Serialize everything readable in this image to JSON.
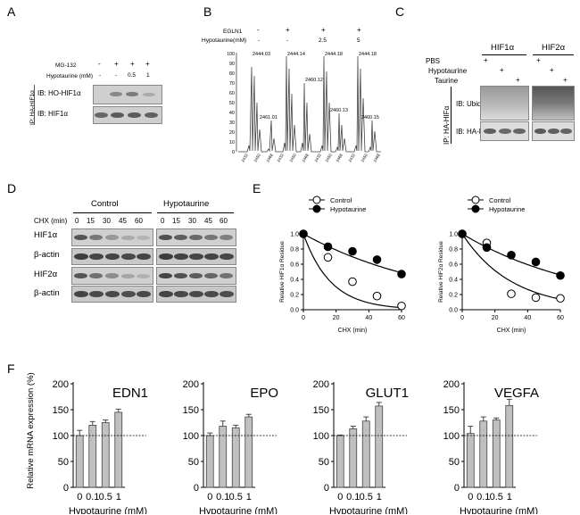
{
  "panels": {
    "a": "A",
    "b": "B",
    "c": "C",
    "d": "D",
    "e": "E",
    "f": "F"
  },
  "panel_a": {
    "mg132_label": "MG-132",
    "mg132_signs": [
      "-",
      "+",
      "+",
      "+"
    ],
    "hypotaurine_label": "Hypotaurine (mM)",
    "hypotaurine_values": [
      "-",
      "-",
      "0.5",
      "1"
    ],
    "ip_label": "IP: HA-HIF1α",
    "rows": [
      "IB: HO-HIF1α",
      "IB: HIF1α"
    ]
  },
  "panel_b": {
    "egln1_label": "EGLN1",
    "egln1_signs": [
      "-",
      "+",
      "+",
      "+"
    ],
    "hypotaurine_label": "Hypotaurine(mM)",
    "hypotaurine_values": [
      "-",
      "-",
      "2.5",
      "5"
    ],
    "y_ticks": [
      "100",
      "90",
      "80",
      "70",
      "60",
      "50",
      "40",
      "30",
      "20",
      "10",
      "0"
    ],
    "peaks": [
      {
        "main": "2444.03",
        "second": "2461.01"
      },
      {
        "main": "2444.14",
        "second": "2460.12"
      },
      {
        "main": "2444.18",
        "second": "2460.13"
      },
      {
        "main": "2444.18",
        "second": "2460.15"
      }
    ],
    "x_ticks": [
      "2432",
      "2450",
      "2468",
      "2432",
      "2450",
      "2468",
      "2432",
      "2450",
      "2468",
      "2432",
      "2450",
      "2468"
    ]
  },
  "panel_c": {
    "hif1_label": "HIF1α",
    "hif2_label": "HIF2α",
    "conditions": [
      "PBS",
      "Hypotaurine",
      "Taurine"
    ],
    "signs": [
      "+",
      "+",
      "+",
      "+",
      "+",
      "+"
    ],
    "ip_label": "IP: HA-HIFα",
    "rows": [
      "IB: Ubiquitin",
      "IB: HA-HIFα"
    ]
  },
  "panel_d": {
    "control_label": "Control",
    "hypotaurine_label": "Hypotaurine",
    "chx_label": "CHX (min)",
    "times": [
      "0",
      "15",
      "30",
      "45",
      "60"
    ],
    "rows": [
      "HIF1α",
      "β-actin",
      "HIF2α",
      "β-actin"
    ]
  },
  "chart_data": [
    {
      "type": "scatter",
      "title": "",
      "xlabel": "CHX (min)",
      "ylabel": "Relative HIF1α Residue",
      "xlim": [
        0,
        60
      ],
      "ylim": [
        0,
        1.0
      ],
      "x_ticks": [
        "0",
        "20",
        "40",
        "60"
      ],
      "y_ticks": [
        "0.0",
        "0.2",
        "0.4",
        "0.6",
        "0.8",
        "1.0"
      ],
      "legend_position": "top-left",
      "series": [
        {
          "name": "Control",
          "x": [
            0,
            15,
            30,
            45,
            60
          ],
          "y": [
            1.0,
            0.69,
            0.37,
            0.18,
            0.05
          ],
          "fit": [
            0,
            0.06
          ],
          "marker": "open-circle"
        },
        {
          "name": "Hypotaurine",
          "x": [
            0,
            15,
            30,
            45,
            60
          ],
          "y": [
            1.0,
            0.83,
            0.77,
            0.66,
            0.47
          ],
          "fit": [
            0,
            0.012
          ],
          "marker": "filled-circle"
        }
      ]
    },
    {
      "type": "scatter",
      "title": "",
      "xlabel": "CHX (min)",
      "ylabel": "Relative HIF2α Residue",
      "xlim": [
        0,
        60
      ],
      "ylim": [
        0,
        1.0
      ],
      "x_ticks": [
        "0",
        "20",
        "40",
        "60"
      ],
      "y_ticks": [
        "0.0",
        "0.2",
        "0.4",
        "0.6",
        "0.8",
        "1.0"
      ],
      "legend_position": "top-left",
      "series": [
        {
          "name": "Control",
          "x": [
            0,
            15,
            30,
            45,
            60
          ],
          "y": [
            1.0,
            0.88,
            0.21,
            0.16,
            0.15
          ],
          "fit": [
            0,
            0.033
          ],
          "marker": "open-circle"
        },
        {
          "name": "Hypotaurine",
          "x": [
            0,
            15,
            30,
            45,
            60
          ],
          "y": [
            1.0,
            0.82,
            0.72,
            0.63,
            0.45
          ],
          "fit": [
            0,
            0.013
          ],
          "marker": "filled-circle"
        }
      ]
    },
    {
      "type": "bar",
      "title": "EDN1",
      "categories": [
        "0",
        "0.1",
        "0.5",
        "1"
      ],
      "values": [
        100,
        120,
        125,
        145
      ],
      "errors": [
        10,
        7,
        5,
        6
      ],
      "xlabel": "Hypotaurine (mM)",
      "ylabel": "Relative mRNA expression (%)",
      "ylim": [
        0,
        200
      ],
      "y_ticks": [
        "0",
        "50",
        "100",
        "150",
        "200"
      ],
      "reference_line": 100
    },
    {
      "type": "bar",
      "title": "EPO",
      "categories": [
        "0",
        "0.1",
        "0.5",
        "1"
      ],
      "values": [
        100,
        118,
        115,
        136
      ],
      "errors": [
        5,
        10,
        5,
        5
      ],
      "xlabel": "Hypotaurine (mM)",
      "ylabel": "",
      "ylim": [
        0,
        200
      ],
      "y_ticks": [
        "0",
        "50",
        "100",
        "150",
        "200"
      ],
      "reference_line": 100
    },
    {
      "type": "bar",
      "title": "GLUT1",
      "categories": [
        "0",
        "0.1",
        "0.5",
        "1"
      ],
      "values": [
        100,
        113,
        128,
        157
      ],
      "errors": [
        1,
        5,
        8,
        7
      ],
      "xlabel": "Hypotaurine (mM)",
      "ylabel": "",
      "ylim": [
        0,
        200
      ],
      "y_ticks": [
        "0",
        "50",
        "100",
        "150",
        "200"
      ],
      "reference_line": 100
    },
    {
      "type": "bar",
      "title": "VEGFA",
      "categories": [
        "0",
        "0.1",
        "0.5",
        "1"
      ],
      "values": [
        104,
        128,
        130,
        158
      ],
      "errors": [
        14,
        8,
        4,
        12
      ],
      "xlabel": "Hypotaurine (mM)",
      "ylabel": "",
      "ylim": [
        0,
        200
      ],
      "y_ticks": [
        "0",
        "50",
        "100",
        "150",
        "200"
      ],
      "reference_line": 100
    }
  ],
  "colors": {
    "bar_fill": "#c0c0c0",
    "bar_stroke": "#444444",
    "axis": "#000000",
    "blot_bg": "#d6d6d6",
    "band": "#5a5a5a"
  }
}
